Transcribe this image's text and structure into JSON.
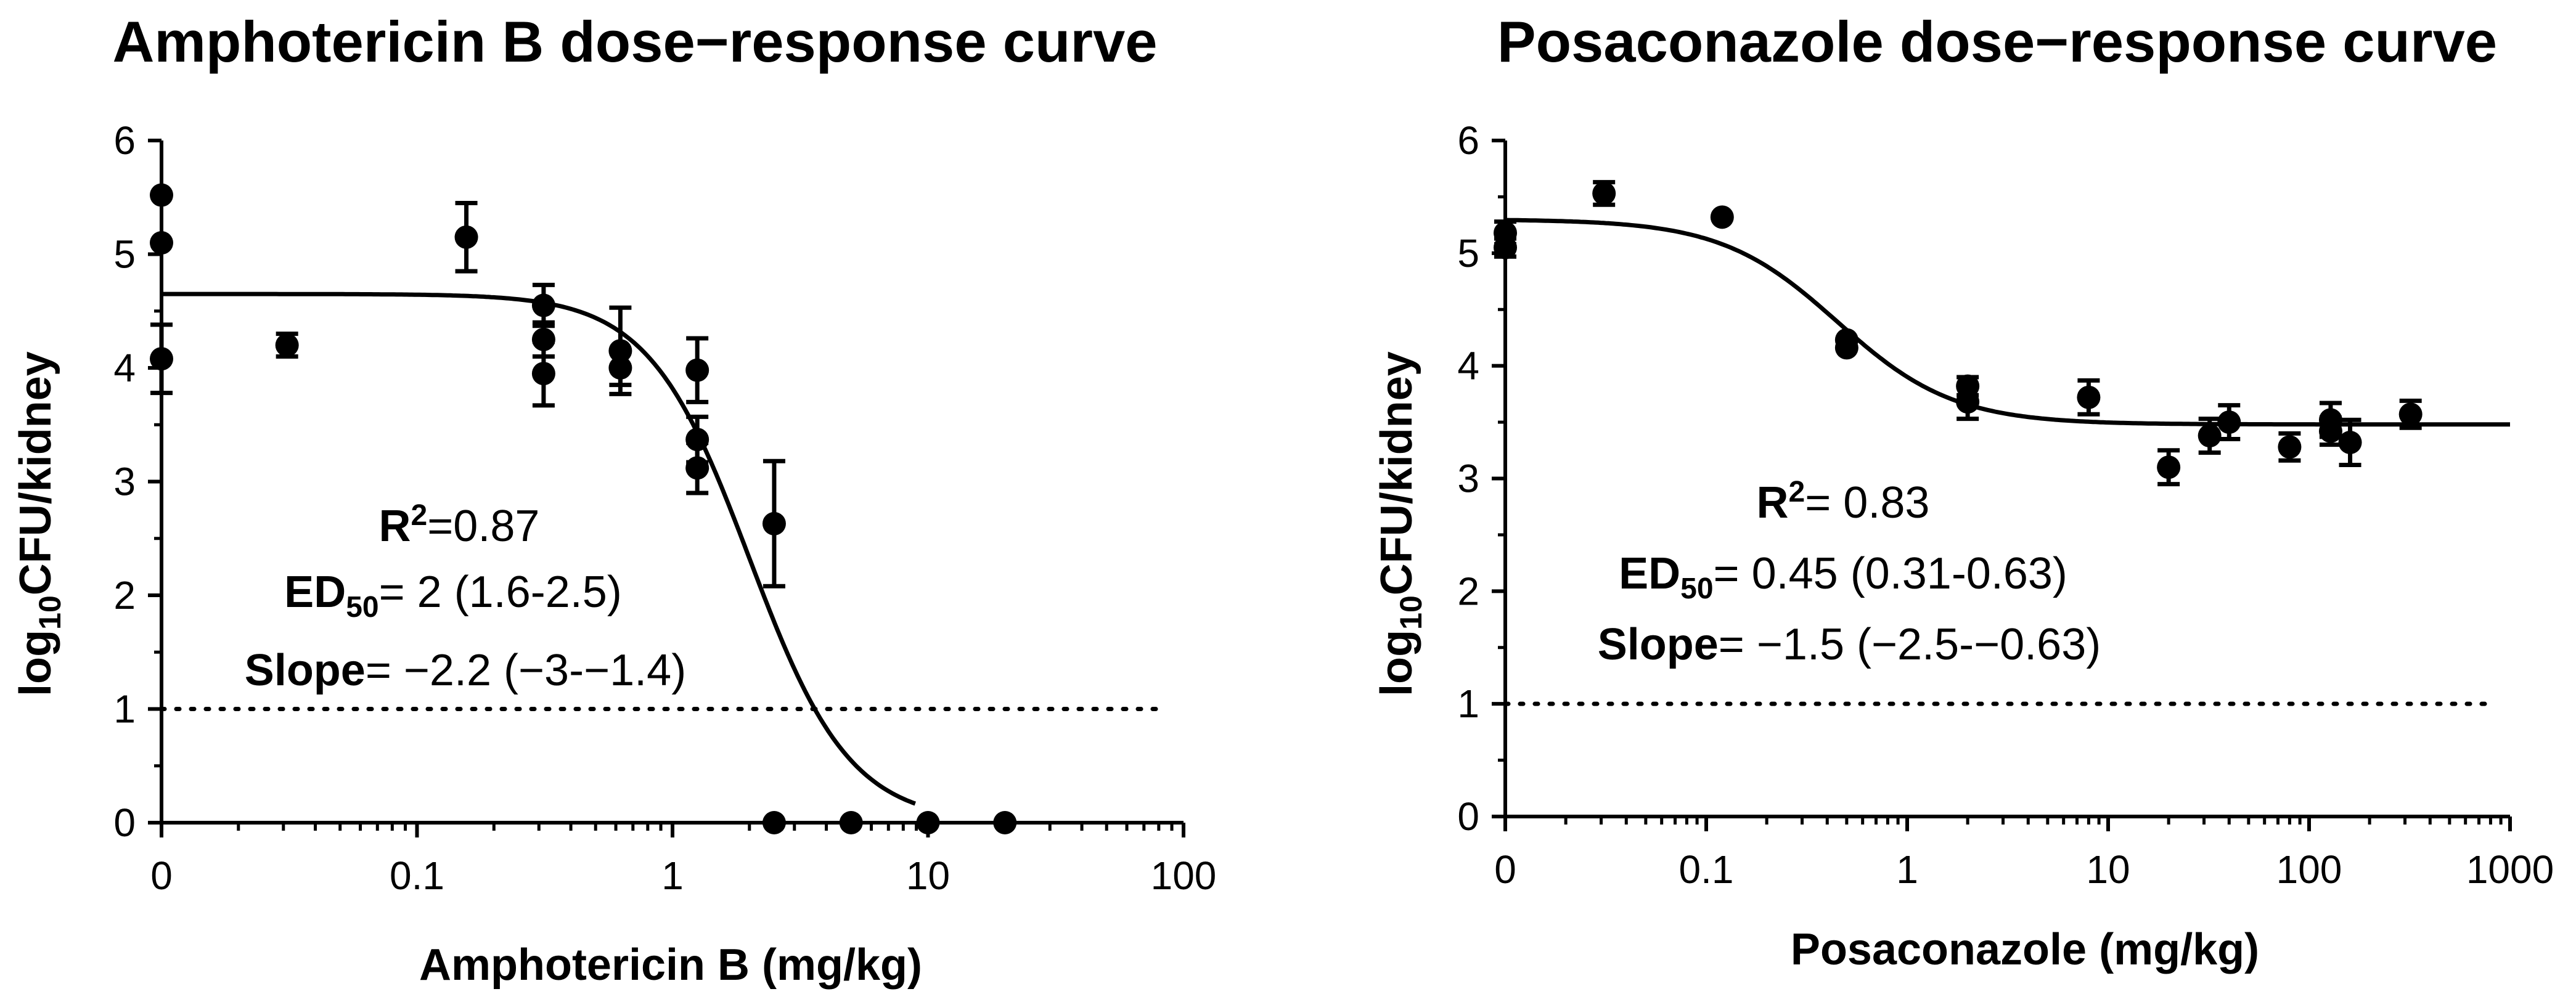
{
  "chart_data": [
    {
      "type": "scatter",
      "title": "Amphotericin B dose−response curve",
      "xlabel": "Amphotericin B (mg/kg)",
      "ylabel": {
        "prefix": "log",
        "sub": "10",
        "suffix": "CFU/kidney"
      },
      "x_scale": "log",
      "xlim": [
        0.01,
        100
      ],
      "ylim": [
        0,
        6
      ],
      "x_ticks": [
        0.01,
        0.1,
        1,
        10,
        100
      ],
      "x_tick_labels": [
        "0",
        "0.1",
        "1",
        "10",
        "100"
      ],
      "y_ticks": [
        0,
        1,
        2,
        3,
        4,
        5,
        6
      ],
      "y_tick_labels": [
        "0",
        "1",
        "2",
        "3",
        "4",
        "5",
        "6"
      ],
      "threshold": 1,
      "points": [
        {
          "x": 0.01,
          "y": 5.52,
          "err": 0
        },
        {
          "x": 0.01,
          "y": 5.1,
          "err": 0
        },
        {
          "x": 0.01,
          "y": 4.08,
          "err": 0.3
        },
        {
          "x": 0.031,
          "y": 4.2,
          "err": 0.1
        },
        {
          "x": 0.156,
          "y": 5.15,
          "err": 0.3
        },
        {
          "x": 0.313,
          "y": 4.55,
          "err": 0.18
        },
        {
          "x": 0.313,
          "y": 4.25,
          "err": 0.15
        },
        {
          "x": 0.313,
          "y": 3.95,
          "err": 0.28
        },
        {
          "x": 0.625,
          "y": 4.15,
          "err": 0.38
        },
        {
          "x": 0.625,
          "y": 4.0,
          "err": 0.15
        },
        {
          "x": 1.25,
          "y": 3.98,
          "err": 0.28
        },
        {
          "x": 1.25,
          "y": 3.37,
          "err": 0.2
        },
        {
          "x": 1.25,
          "y": 3.12,
          "err": 0.22
        },
        {
          "x": 2.5,
          "y": 2.63,
          "err": 0.55
        },
        {
          "x": 2.5,
          "y": 0,
          "err": 0
        },
        {
          "x": 5,
          "y": 0,
          "err": 0
        },
        {
          "x": 10,
          "y": 0,
          "err": 0
        },
        {
          "x": 20,
          "y": 0,
          "err": 0
        }
      ],
      "fit": {
        "top": 4.65,
        "bottom": 0,
        "ed50": 2,
        "slope": -2.2
      },
      "annotation": {
        "r2_label": "R",
        "r2_sup": "2",
        "r2_value": "=0.87",
        "ed50_label": "ED",
        "ed50_sub": "50",
        "ed50_value": "= 2 (1.6-2.5)",
        "slope_label": "Slope",
        "slope_value": "= −2.2 (−3-−1.4)"
      }
    },
    {
      "type": "scatter",
      "title": "Posaconazole dose−response curve",
      "xlabel": "Posaconazole (mg/kg)",
      "ylabel": {
        "prefix": "log",
        "sub": "10",
        "suffix": "CFU/kidney"
      },
      "x_scale": "log",
      "xlim": [
        0.01,
        1000
      ],
      "ylim": [
        0,
        6
      ],
      "x_ticks": [
        0.01,
        0.1,
        1,
        10,
        100,
        1000
      ],
      "x_tick_labels": [
        "0",
        "0.1",
        "1",
        "10",
        "100",
        "1000"
      ],
      "y_ticks": [
        0,
        1,
        2,
        3,
        4,
        5,
        6
      ],
      "y_tick_labels": [
        "0",
        "1",
        "2",
        "3",
        "4",
        "5",
        "6"
      ],
      "threshold": 1,
      "points": [
        {
          "x": 0.01,
          "y": 5.18,
          "err": 0.1
        },
        {
          "x": 0.01,
          "y": 5.05,
          "err": 0.08
        },
        {
          "x": 0.031,
          "y": 5.53,
          "err": 0.1
        },
        {
          "x": 0.12,
          "y": 5.32,
          "err": 0
        },
        {
          "x": 0.5,
          "y": 4.23,
          "err": 0
        },
        {
          "x": 0.5,
          "y": 4.16,
          "err": 0
        },
        {
          "x": 2,
          "y": 3.82,
          "err": 0.08
        },
        {
          "x": 2,
          "y": 3.68,
          "err": 0.15
        },
        {
          "x": 8,
          "y": 3.72,
          "err": 0.15
        },
        {
          "x": 20,
          "y": 3.1,
          "err": 0.15
        },
        {
          "x": 32,
          "y": 3.38,
          "err": 0.15
        },
        {
          "x": 40,
          "y": 3.5,
          "err": 0.15
        },
        {
          "x": 80,
          "y": 3.28,
          "err": 0.12
        },
        {
          "x": 128,
          "y": 3.52,
          "err": 0.15
        },
        {
          "x": 128,
          "y": 3.42,
          "err": 0.12
        },
        {
          "x": 160,
          "y": 3.32,
          "err": 0.2
        },
        {
          "x": 320,
          "y": 3.57,
          "err": 0.12
        }
      ],
      "fit": {
        "top": 5.3,
        "bottom": 3.48,
        "ed50": 0.45,
        "slope": -1.5
      },
      "annotation": {
        "r2_label": "R",
        "r2_sup": "2",
        "r2_value": "= 0.83",
        "ed50_label": "ED",
        "ed50_sub": "50",
        "ed50_value": "= 0.45 (0.31-0.63)",
        "slope_label": "Slope",
        "slope_value": "= −1.5 (−2.5-−0.63)"
      }
    }
  ]
}
